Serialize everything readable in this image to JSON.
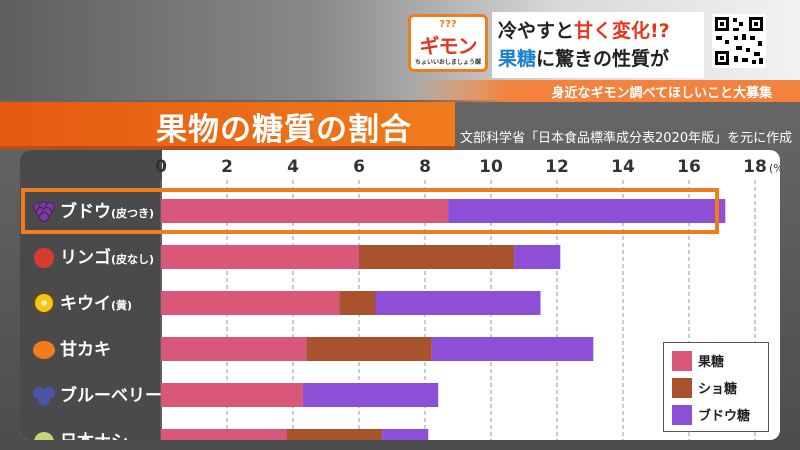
{
  "banner": {
    "logo_top": "???",
    "logo_main": "ギモン",
    "logo_sub": "ちょいいおしましょう課",
    "headline_line1_a": "冷やすと",
    "headline_line1_b": "甘く変化!?",
    "headline_line2_a": "果糖",
    "headline_line2_b": "に驚きの性質が",
    "strip_text": "身近なギモン調べてほしいこと大募集"
  },
  "colors": {
    "fructose": "#d95778",
    "sucrose": "#a8532e",
    "glucose": "#8d4fd6",
    "highlight": "#f07c1c"
  },
  "chart_data": {
    "type": "bar",
    "orientation": "horizontal",
    "stacked": true,
    "title": "果物の糖質の割合",
    "source": "文部科学省「日本食品標準成分表2020年版」を元に作成",
    "categories": [
      "ブドウ(皮つき)",
      "リンゴ(皮なし)",
      "キウイ(黄)",
      "甘カキ",
      "ブルーベリー",
      "日本ナシ"
    ],
    "category_icons": [
      "grape-icon",
      "apple-icon",
      "kiwi-icon",
      "persimmon-icon",
      "blueberry-icon",
      "pear-icon"
    ],
    "series": [
      {
        "name": "果糖",
        "values": [
          8.7,
          6.0,
          5.4,
          4.4,
          4.3,
          3.8
        ]
      },
      {
        "name": "ショ糖",
        "values": [
          0.0,
          4.7,
          1.1,
          3.8,
          0.0,
          2.9
        ]
      },
      {
        "name": "ブドウ糖",
        "values": [
          8.4,
          1.4,
          5.0,
          4.9,
          4.1,
          1.4
        ]
      }
    ],
    "x_ticks": [
      "0",
      "2",
      "4",
      "6",
      "8",
      "10",
      "12",
      "14",
      "16",
      "18"
    ],
    "x_unit": "(%)",
    "xlim": [
      0,
      18
    ],
    "highlighted_category": "ブドウ(皮つき)",
    "grid": true,
    "legend_position": "bottom-right"
  }
}
